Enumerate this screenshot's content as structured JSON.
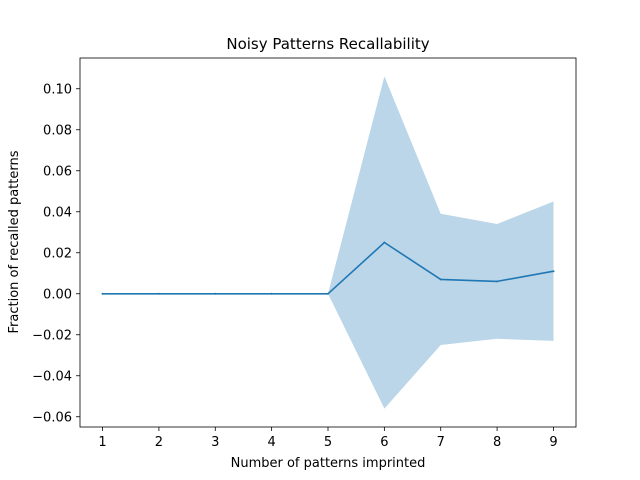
{
  "chart_data": {
    "type": "line",
    "title": "Noisy Patterns Recallability",
    "xlabel": "Number of patterns imprinted",
    "ylabel": "Fraction of recalled patterns",
    "x": [
      1,
      2,
      3,
      4,
      5,
      6,
      7,
      8,
      9
    ],
    "series": [
      {
        "values": [
          0.0,
          0.0,
          0.0,
          0.0,
          0.0,
          0.025,
          0.007,
          0.006,
          0.011
        ],
        "band_lower": [
          0.0,
          0.0,
          0.0,
          0.0,
          0.0,
          -0.056,
          -0.025,
          -0.022,
          -0.023
        ],
        "band_upper": [
          0.0,
          0.0,
          0.0,
          0.0,
          0.0,
          0.106,
          0.039,
          0.034,
          0.045
        ],
        "color": "#1f77b4",
        "band_color": "#1f77b4"
      }
    ],
    "xlim": [
      0.6,
      9.4
    ],
    "ylim": [
      -0.065,
      0.115
    ],
    "xticks": [
      1,
      2,
      3,
      4,
      5,
      6,
      7,
      8,
      9
    ],
    "yticks": [
      -0.06,
      -0.04,
      -0.02,
      0.0,
      0.02,
      0.04,
      0.06,
      0.08,
      0.1
    ],
    "ytick_labels": [
      "−0.06",
      "−0.04",
      "−0.02",
      "0.00",
      "0.02",
      "0.04",
      "0.06",
      "0.08",
      "0.10"
    ],
    "grid": false,
    "legend": "none"
  }
}
